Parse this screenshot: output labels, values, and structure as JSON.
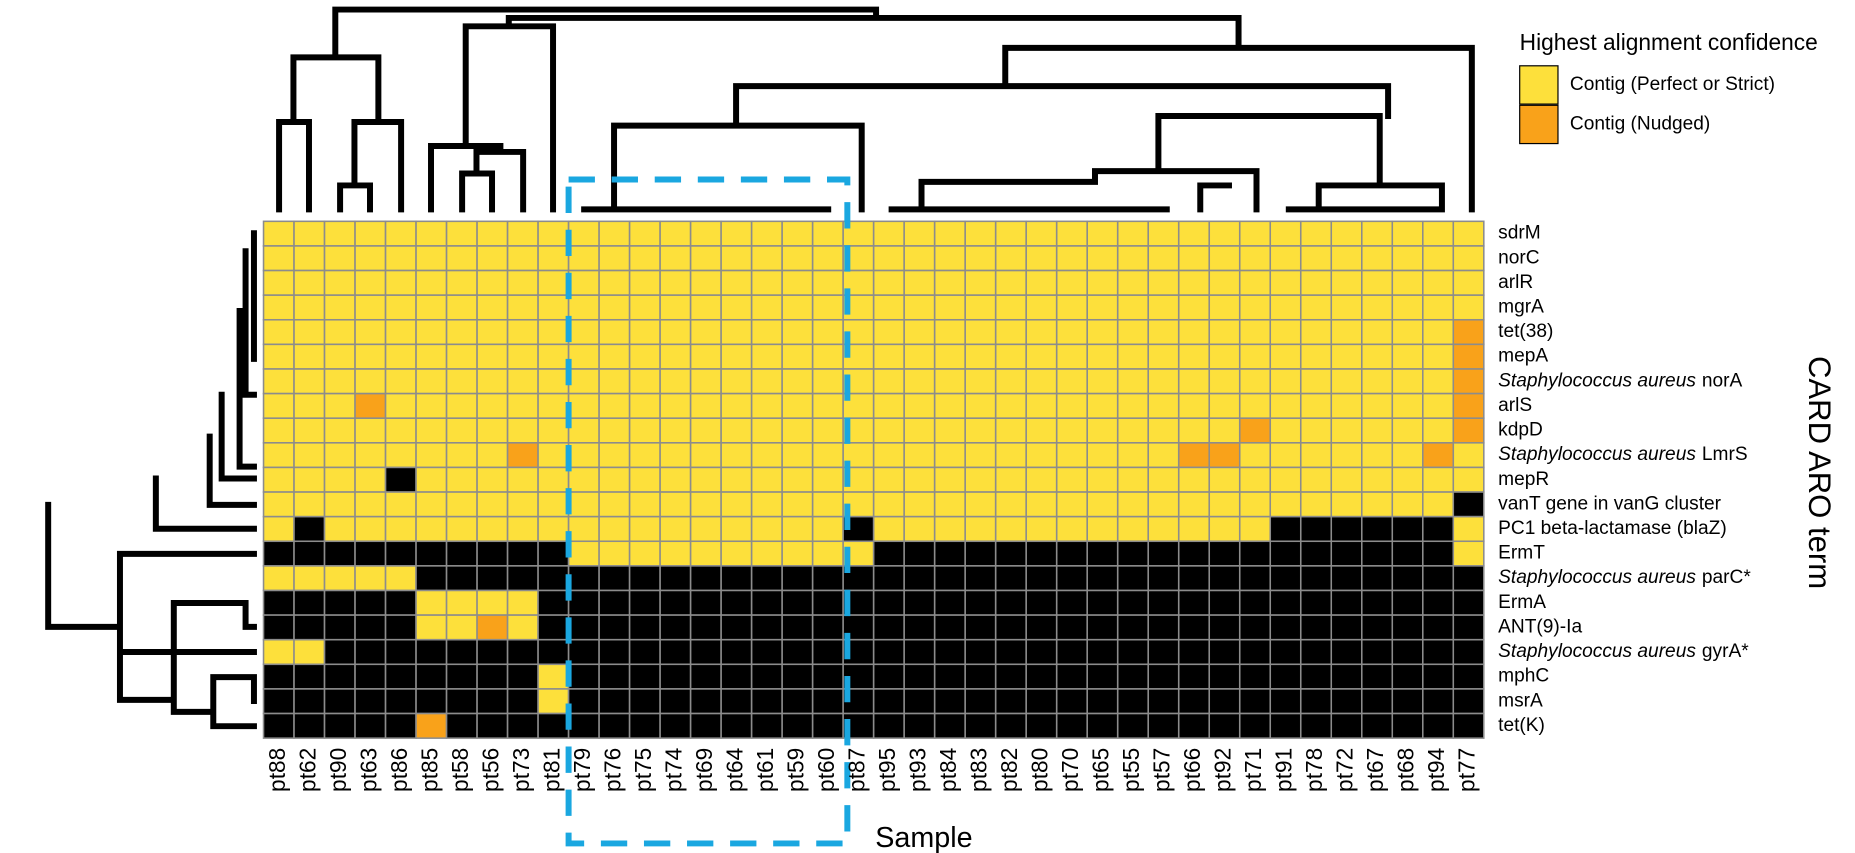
{
  "chart_data": {
    "type": "heatmap",
    "x_label": "Sample",
    "y_label": "CARD ARO term",
    "legend_title": "Highest alignment confidence",
    "legend": [
      {
        "label": "Contig (Perfect or Strict)",
        "color": "#fde03b"
      },
      {
        "label": "Contig (Nudged)",
        "color": "#f9a21a"
      }
    ],
    "missing_color": "#000000",
    "grid_color": "#8c8c8c",
    "columns": [
      "pt88",
      "pt62",
      "pt90",
      "pt63",
      "pt86",
      "pt85",
      "pt58",
      "pt56",
      "pt73",
      "pt81",
      "pt79",
      "pt76",
      "pt75",
      "pt74",
      "pt69",
      "pt64",
      "pt61",
      "pt59",
      "pt60",
      "pt87",
      "pt95",
      "pt93",
      "pt84",
      "pt83",
      "pt82",
      "pt80",
      "pt70",
      "pt65",
      "pt55",
      "pt57",
      "pt66",
      "pt92",
      "pt71",
      "pt91",
      "pt78",
      "pt72",
      "pt67",
      "pt68",
      "pt94",
      "pt77"
    ],
    "rows": [
      "sdrM",
      "norC",
      "arlR",
      "mgrA",
      "tet(38)",
      "mepA",
      {
        "italic": "Staphylococcus aureus",
        "text": "norA"
      },
      "arlS",
      "kdpD",
      {
        "italic": "Staphylococcus aureus",
        "text": "LmrS"
      },
      "mepR",
      "vanT gene in vanG cluster",
      "PC1 beta-lactamase (blaZ)",
      "ErmT",
      {
        "italic": "Staphylococcus aureus",
        "text": "parC*"
      },
      "ErmA",
      "ANT(9)-Ia",
      {
        "italic": "Staphylococcus aureus",
        "text": "gyrA*"
      },
      "mphC",
      "msrA",
      "tet(K)"
    ],
    "values": [
      [
        0,
        0,
        0,
        0,
        0,
        0,
        0,
        0,
        0,
        0,
        0,
        0,
        0,
        0,
        0,
        0,
        0,
        0,
        0,
        0,
        0,
        0,
        0,
        0,
        0,
        0,
        0,
        0,
        0,
        0,
        0,
        0,
        0,
        0,
        0,
        0,
        0,
        0,
        0,
        0
      ],
      [
        0,
        0,
        0,
        0,
        0,
        0,
        0,
        0,
        0,
        0,
        0,
        0,
        0,
        0,
        0,
        0,
        0,
        0,
        0,
        0,
        0,
        0,
        0,
        0,
        0,
        0,
        0,
        0,
        0,
        0,
        0,
        0,
        0,
        0,
        0,
        0,
        0,
        0,
        0,
        0
      ],
      [
        0,
        0,
        0,
        0,
        0,
        0,
        0,
        0,
        0,
        0,
        0,
        0,
        0,
        0,
        0,
        0,
        0,
        0,
        0,
        0,
        0,
        0,
        0,
        0,
        0,
        0,
        0,
        0,
        0,
        0,
        0,
        0,
        0,
        0,
        0,
        0,
        0,
        0,
        0,
        0
      ],
      [
        0,
        0,
        0,
        0,
        0,
        0,
        0,
        0,
        0,
        0,
        0,
        0,
        0,
        0,
        0,
        0,
        0,
        0,
        0,
        0,
        0,
        0,
        0,
        0,
        0,
        0,
        0,
        0,
        0,
        0,
        0,
        0,
        0,
        0,
        0,
        0,
        0,
        0,
        0,
        0
      ],
      [
        0,
        0,
        0,
        0,
        0,
        0,
        0,
        0,
        0,
        0,
        0,
        0,
        0,
        0,
        0,
        0,
        0,
        0,
        0,
        0,
        0,
        0,
        0,
        0,
        0,
        0,
        0,
        0,
        0,
        0,
        0,
        0,
        0,
        0,
        0,
        0,
        0,
        0,
        0,
        1
      ],
      [
        0,
        0,
        0,
        0,
        0,
        0,
        0,
        0,
        0,
        0,
        0,
        0,
        0,
        0,
        0,
        0,
        0,
        0,
        0,
        0,
        0,
        0,
        0,
        0,
        0,
        0,
        0,
        0,
        0,
        0,
        0,
        0,
        0,
        0,
        0,
        0,
        0,
        0,
        0,
        1
      ],
      [
        0,
        0,
        0,
        0,
        0,
        0,
        0,
        0,
        0,
        0,
        0,
        0,
        0,
        0,
        0,
        0,
        0,
        0,
        0,
        0,
        0,
        0,
        0,
        0,
        0,
        0,
        0,
        0,
        0,
        0,
        0,
        0,
        0,
        0,
        0,
        0,
        0,
        0,
        0,
        1
      ],
      [
        0,
        0,
        0,
        1,
        0,
        0,
        0,
        0,
        0,
        0,
        0,
        0,
        0,
        0,
        0,
        0,
        0,
        0,
        0,
        0,
        0,
        0,
        0,
        0,
        0,
        0,
        0,
        0,
        0,
        0,
        0,
        0,
        0,
        0,
        0,
        0,
        0,
        0,
        0,
        1
      ],
      [
        0,
        0,
        0,
        0,
        0,
        0,
        0,
        0,
        0,
        0,
        0,
        0,
        0,
        0,
        0,
        0,
        0,
        0,
        0,
        0,
        0,
        0,
        0,
        0,
        0,
        0,
        0,
        0,
        0,
        0,
        0,
        0,
        1,
        0,
        0,
        0,
        0,
        0,
        0,
        1
      ],
      [
        0,
        0,
        0,
        0,
        0,
        0,
        0,
        0,
        1,
        0,
        0,
        0,
        0,
        0,
        0,
        0,
        0,
        0,
        0,
        0,
        0,
        0,
        0,
        0,
        0,
        0,
        0,
        0,
        0,
        0,
        1,
        1,
        0,
        0,
        0,
        0,
        0,
        0,
        1,
        0
      ],
      [
        0,
        0,
        0,
        0,
        null,
        0,
        0,
        0,
        0,
        0,
        0,
        0,
        0,
        0,
        0,
        0,
        0,
        0,
        0,
        0,
        0,
        0,
        0,
        0,
        0,
        0,
        0,
        0,
        0,
        0,
        0,
        0,
        0,
        0,
        0,
        0,
        0,
        0,
        0,
        0
      ],
      [
        0,
        0,
        0,
        0,
        0,
        0,
        0,
        0,
        0,
        0,
        0,
        0,
        0,
        0,
        0,
        0,
        0,
        0,
        0,
        0,
        0,
        0,
        0,
        0,
        0,
        0,
        0,
        0,
        0,
        0,
        0,
        0,
        0,
        0,
        0,
        0,
        0,
        0,
        0,
        null
      ],
      [
        0,
        null,
        0,
        0,
        0,
        0,
        0,
        0,
        0,
        0,
        0,
        0,
        0,
        0,
        0,
        0,
        0,
        0,
        0,
        null,
        0,
        0,
        0,
        0,
        0,
        0,
        0,
        0,
        0,
        0,
        0,
        0,
        0,
        null,
        null,
        null,
        null,
        null,
        null,
        0
      ],
      [
        null,
        null,
        null,
        null,
        null,
        null,
        null,
        null,
        null,
        null,
        0,
        0,
        0,
        0,
        0,
        0,
        0,
        0,
        0,
        0,
        null,
        null,
        null,
        null,
        null,
        null,
        null,
        null,
        null,
        null,
        null,
        null,
        null,
        null,
        null,
        null,
        null,
        null,
        null,
        0
      ],
      [
        0,
        0,
        0,
        0,
        0,
        null,
        null,
        null,
        null,
        null,
        null,
        null,
        null,
        null,
        null,
        null,
        null,
        null,
        null,
        null,
        null,
        null,
        null,
        null,
        null,
        null,
        null,
        null,
        null,
        null,
        null,
        null,
        null,
        null,
        null,
        null,
        null,
        null,
        null,
        null
      ],
      [
        null,
        null,
        null,
        null,
        null,
        0,
        0,
        0,
        0,
        null,
        null,
        null,
        null,
        null,
        null,
        null,
        null,
        null,
        null,
        null,
        null,
        null,
        null,
        null,
        null,
        null,
        null,
        null,
        null,
        null,
        null,
        null,
        null,
        null,
        null,
        null,
        null,
        null,
        null,
        null
      ],
      [
        null,
        null,
        null,
        null,
        null,
        0,
        0,
        1,
        0,
        null,
        null,
        null,
        null,
        null,
        null,
        null,
        null,
        null,
        null,
        null,
        null,
        null,
        null,
        null,
        null,
        null,
        null,
        null,
        null,
        null,
        null,
        null,
        null,
        null,
        null,
        null,
        null,
        null,
        null,
        null
      ],
      [
        0,
        0,
        null,
        null,
        null,
        null,
        null,
        null,
        null,
        null,
        null,
        null,
        null,
        null,
        null,
        null,
        null,
        null,
        null,
        null,
        null,
        null,
        null,
        null,
        null,
        null,
        null,
        null,
        null,
        null,
        null,
        null,
        null,
        null,
        null,
        null,
        null,
        null,
        null,
        null
      ],
      [
        null,
        null,
        null,
        null,
        null,
        null,
        null,
        null,
        null,
        0,
        null,
        null,
        null,
        null,
        null,
        null,
        null,
        null,
        null,
        null,
        null,
        null,
        null,
        null,
        null,
        null,
        null,
        null,
        null,
        null,
        null,
        null,
        null,
        null,
        null,
        null,
        null,
        null,
        null,
        null
      ],
      [
        null,
        null,
        null,
        null,
        null,
        null,
        null,
        null,
        null,
        0,
        null,
        null,
        null,
        null,
        null,
        null,
        null,
        null,
        null,
        null,
        null,
        null,
        null,
        null,
        null,
        null,
        null,
        null,
        null,
        null,
        null,
        null,
        null,
        null,
        null,
        null,
        null,
        null,
        null,
        null
      ],
      [
        null,
        null,
        null,
        null,
        null,
        1,
        null,
        null,
        null,
        null,
        null,
        null,
        null,
        null,
        null,
        null,
        null,
        null,
        null,
        null,
        null,
        null,
        null,
        null,
        null,
        null,
        null,
        null,
        null,
        null,
        null,
        null,
        null,
        null,
        null,
        null,
        null,
        null,
        null,
        null
      ]
    ]
  }
}
